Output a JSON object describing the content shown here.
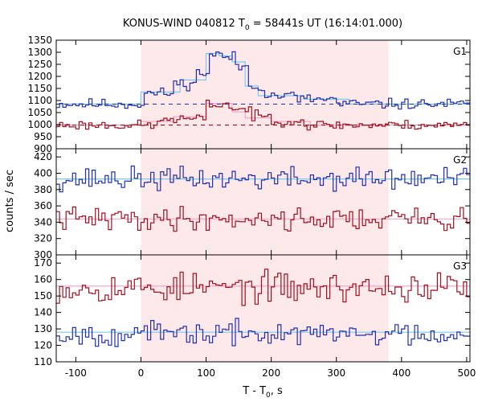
{
  "chart_data": {
    "type": "line",
    "title_main": "KONUS-WIND 040812 T",
    "title_sub": "0",
    "title_rest": " = 58441s UT (16:14:01.000)",
    "xlabel_main": "T - T",
    "xlabel_sub": "0",
    "xlabel_rest": ", s",
    "ylabel": "counts / sec",
    "xlim": [
      -130,
      505
    ],
    "xticks": [
      -100,
      0,
      100,
      200,
      300,
      400,
      500
    ],
    "highlight_region": [
      0,
      380
    ],
    "colors": {
      "highlight": "#fde8ea",
      "blue": "#1f2fb0",
      "blue_fit": "#7ec8ee",
      "red": "#a01020",
      "red_fit": "#f0a8c8"
    },
    "panels": [
      {
        "name": "G1",
        "ylim": [
          900,
          1350
        ],
        "yticks": [
          900,
          950,
          1000,
          1050,
          1100,
          1150,
          1200,
          1250,
          1300,
          1350
        ],
        "series": [
          {
            "color": "blue",
            "base": 1085,
            "noise": 11,
            "seed": 11,
            "bumps": [
              [
                5,
                50,
                45
              ],
              [
                50,
                85,
                85
              ],
              [
                85,
                105,
                130
              ],
              [
                105,
                125,
                205
              ],
              [
                125,
                145,
                195
              ],
              [
                145,
                165,
                155
              ],
              [
                165,
                190,
                75
              ],
              [
                190,
                240,
                35
              ],
              [
                240,
                300,
                20
              ]
            ]
          },
          {
            "color": "red",
            "base": 998,
            "noise": 10,
            "seed": 23,
            "bumps": [
              [
                30,
                100,
                25
              ],
              [
                100,
                140,
                85
              ],
              [
                140,
                170,
                65
              ],
              [
                170,
                200,
                35
              ],
              [
                200,
                250,
                18
              ]
            ]
          }
        ],
        "fits": [
          {
            "color": "blue_fit",
            "base": 1085,
            "bumps": [
              [
                0,
                60,
                50
              ],
              [
                60,
                100,
                100
              ],
              [
                100,
                120,
                210
              ],
              [
                120,
                140,
                200
              ],
              [
                140,
                160,
                175
              ],
              [
                160,
                180,
                75
              ],
              [
                180,
                250,
                35
              ],
              [
                250,
                320,
                20
              ]
            ]
          },
          {
            "color": "red_fit",
            "base": 998,
            "bumps": [
              [
                0,
                50,
                15
              ],
              [
                50,
                100,
                35
              ],
              [
                100,
                140,
                90
              ],
              [
                140,
                160,
                55
              ],
              [
                160,
                200,
                30
              ],
              [
                200,
                260,
                15
              ]
            ]
          }
        ],
        "dashed": [
          {
            "color": "blue",
            "y": 1085
          },
          {
            "color": "red",
            "y": 998
          }
        ]
      },
      {
        "name": "G2",
        "ylim": [
          300,
          430
        ],
        "yticks": [
          300,
          320,
          340,
          360,
          380,
          400,
          420
        ],
        "series": [
          {
            "color": "blue",
            "base": 393,
            "noise": 7,
            "seed": 37,
            "bumps": []
          },
          {
            "color": "red",
            "base": 344,
            "noise": 7,
            "seed": 41,
            "bumps": []
          }
        ],
        "fits": [
          {
            "color": "blue_fit",
            "base": 393,
            "bumps": []
          },
          {
            "color": "red_fit",
            "base": 344,
            "bumps": []
          }
        ],
        "dashed": []
      },
      {
        "name": "G3",
        "ylim": [
          110,
          175
        ],
        "yticks": [
          110,
          120,
          130,
          140,
          150,
          160,
          170
        ],
        "series": [
          {
            "color": "red",
            "base": 155,
            "noise": 4.5,
            "seed": 53,
            "bumps": []
          },
          {
            "color": "blue",
            "base": 127,
            "noise": 3.5,
            "seed": 67,
            "bumps": []
          }
        ],
        "fits": [
          {
            "color": "red_fit",
            "base": 156,
            "bumps": []
          },
          {
            "color": "blue_fit",
            "base": 128,
            "bumps": []
          }
        ],
        "dashed": []
      }
    ],
    "bin_width": 5
  }
}
